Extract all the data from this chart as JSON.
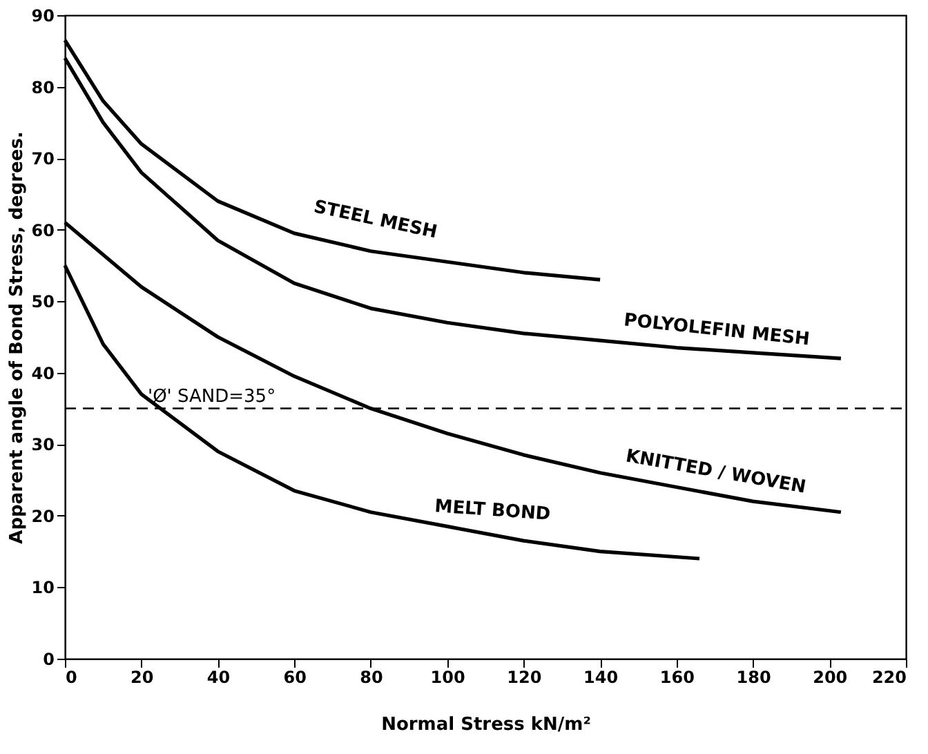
{
  "chart_data": {
    "type": "line",
    "xlabel": "Normal Stress kN/m²",
    "ylabel": "Apparent angle of Bond Stress, degrees.",
    "xlim": [
      0,
      220
    ],
    "xticks": [
      0,
      20,
      40,
      60,
      80,
      100,
      120,
      140,
      160,
      180,
      200,
      220
    ],
    "ylim": [
      0,
      90
    ],
    "yticks": [
      0,
      10,
      20,
      30,
      40,
      50,
      60,
      70,
      80,
      90
    ],
    "grid": false,
    "marker": "none",
    "line_style": "solid",
    "series": [
      {
        "name": "STEEL MESH",
        "color": "#000000",
        "x": [
          0,
          10,
          20,
          40,
          60,
          80,
          100,
          120,
          140
        ],
        "values": [
          86.5,
          78,
          72,
          64,
          59.5,
          57,
          55.5,
          54,
          53
        ]
      },
      {
        "name": "POLYOLEFIN MESH",
        "color": "#000000",
        "x": [
          0,
          10,
          20,
          40,
          60,
          80,
          100,
          120,
          140,
          160,
          180,
          203
        ],
        "values": [
          84,
          75,
          68,
          58.5,
          52.5,
          49,
          47,
          45.5,
          44.5,
          43.5,
          42.8,
          42
        ]
      },
      {
        "name": "KNITTED / WOVEN",
        "color": "#000000",
        "x": [
          0,
          20,
          40,
          60,
          80,
          100,
          120,
          140,
          160,
          180,
          203
        ],
        "values": [
          61,
          52,
          45,
          39.5,
          35,
          31.5,
          28.5,
          26,
          24,
          22,
          20.5
        ]
      },
      {
        "name": "MELT BOND",
        "color": "#000000",
        "x": [
          0,
          10,
          20,
          25,
          40,
          60,
          80,
          100,
          120,
          140,
          166
        ],
        "values": [
          55,
          44,
          37,
          35,
          29,
          23.5,
          20.5,
          18.5,
          16.5,
          15,
          14
        ]
      }
    ],
    "ref_lines": [
      {
        "axis": "y",
        "value": 35,
        "label": "'Ø' SAND=35°",
        "color": "#000000",
        "line_style": "dashed"
      }
    ]
  }
}
